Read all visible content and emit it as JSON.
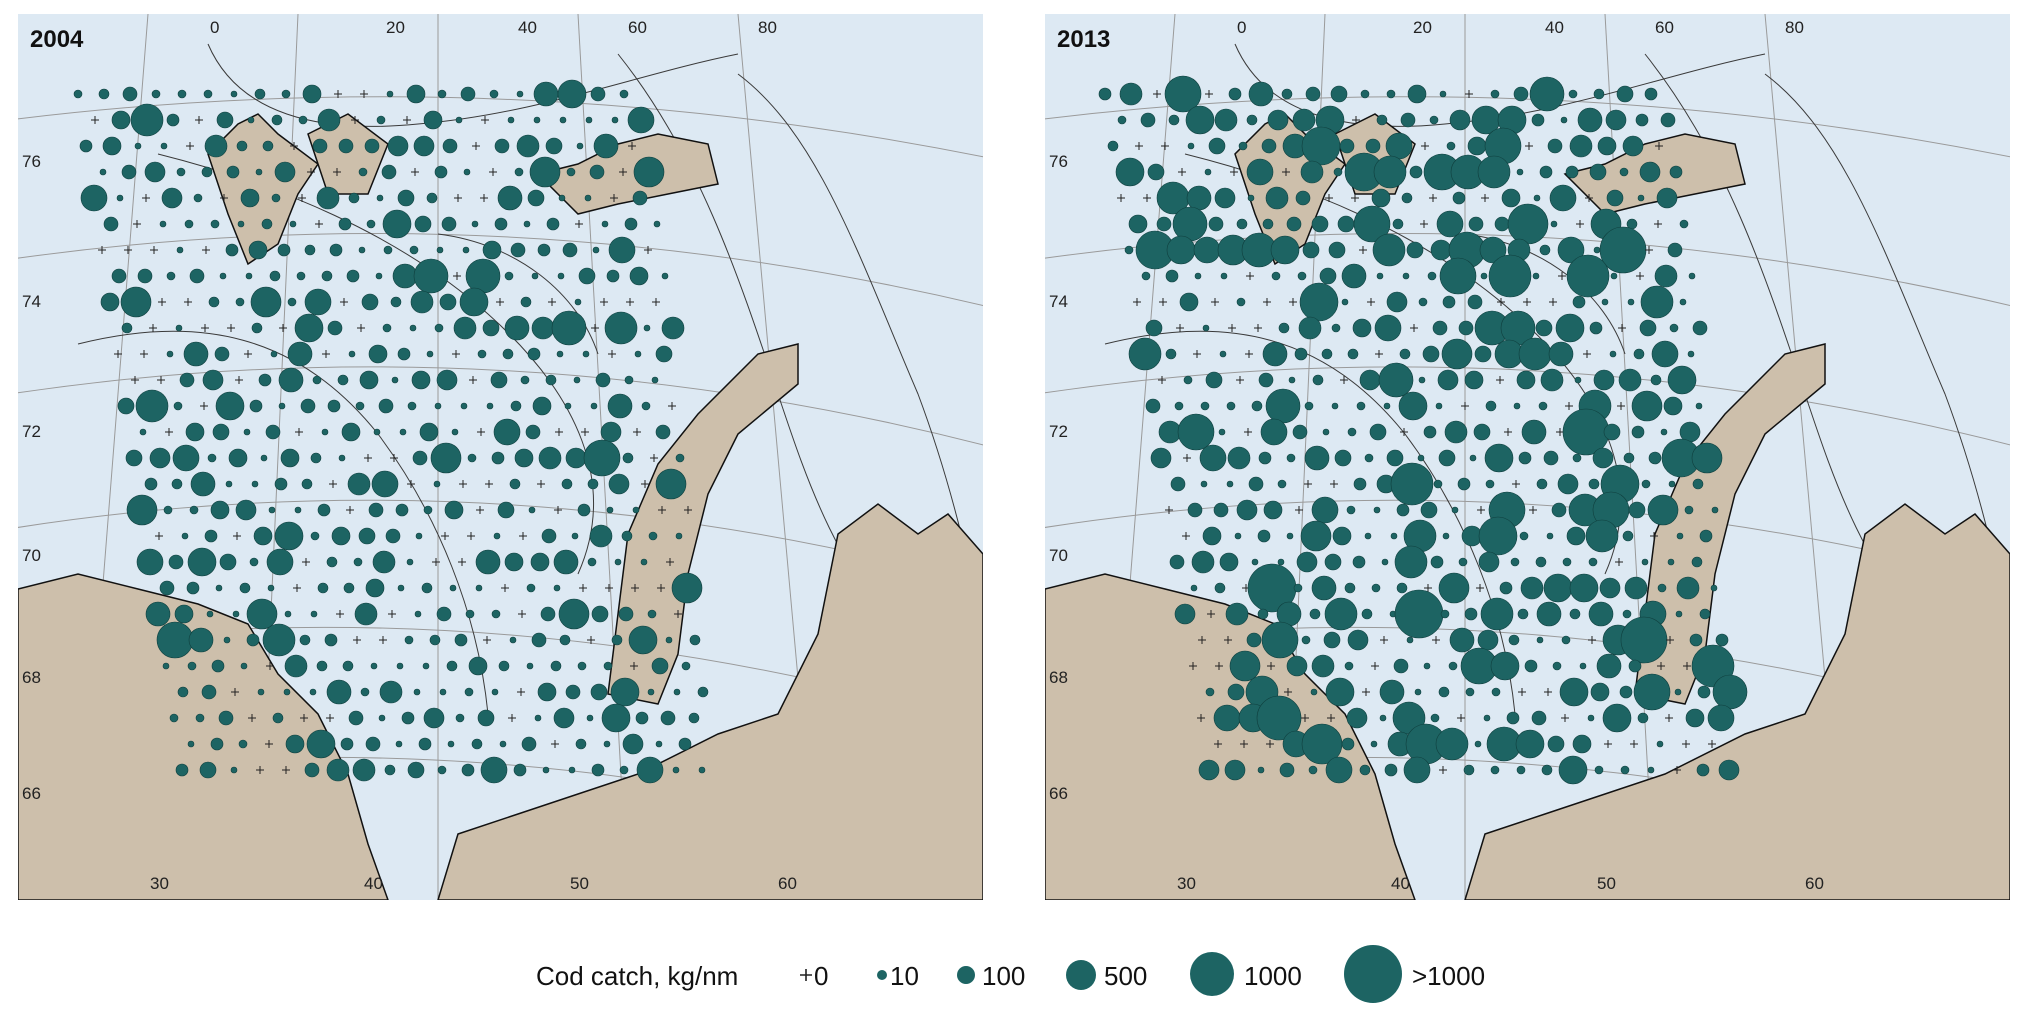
{
  "panels": [
    {
      "year": "2004",
      "top_ticks": [
        "0",
        "20",
        "40",
        "60",
        "80"
      ],
      "left_ticks": [
        "76",
        "74",
        "72",
        "70",
        "68",
        "66"
      ],
      "bottom_ticks": [
        "30",
        "40",
        "50",
        "60"
      ]
    },
    {
      "year": "2013",
      "top_ticks": [
        "0",
        "20",
        "40",
        "60",
        "80"
      ],
      "left_ticks": [
        "76",
        "74",
        "72",
        "70",
        "68",
        "66"
      ],
      "bottom_ticks": [
        "30",
        "40",
        "50",
        "60"
      ]
    }
  ],
  "legend": {
    "title": "Cod catch, kg/nm",
    "items": [
      {
        "label": "0",
        "symbol": "plus"
      },
      {
        "label": "10",
        "symbol": "circle",
        "size": 10
      },
      {
        "label": "100",
        "symbol": "circle",
        "size": 100
      },
      {
        "label": "500",
        "symbol": "circle",
        "size": 500
      },
      {
        "label": "1000",
        "symbol": "circle",
        "size": 1000
      },
      {
        "label": ">1000",
        "symbol": "circle",
        "size": 2000
      }
    ]
  },
  "colors": {
    "sea": "#dde9f3",
    "land": "#cdbfab",
    "catch": "#1d6463",
    "grid": "#9a9a9a",
    "depth_contour": "#3a3a3a"
  }
}
